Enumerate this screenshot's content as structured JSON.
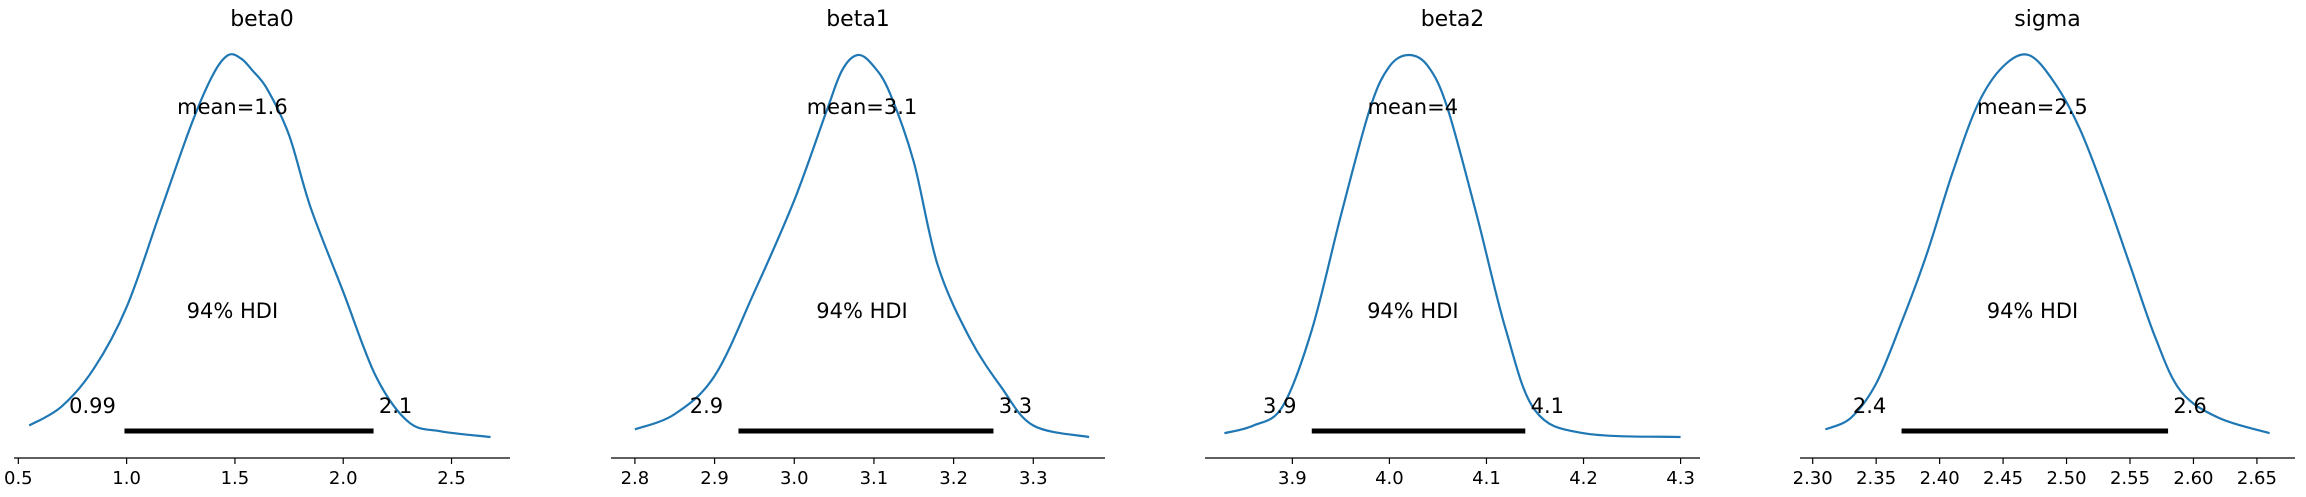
{
  "chart_data": [
    {
      "type": "line",
      "title": "beta0",
      "mean_label": "mean=1.6",
      "hdi_label": "94% HDI",
      "hdi_low_label": "0.99",
      "hdi_high_label": "2.1",
      "hdi": [
        0.99,
        2.14
      ],
      "xlim": [
        0.48,
        2.77
      ],
      "xticks": [
        "0.5",
        "1.0",
        "1.5",
        "2.0",
        "2.5"
      ],
      "x": [
        0.55,
        0.7,
        0.85,
        1.0,
        1.15,
        1.3,
        1.4,
        1.47,
        1.53,
        1.58,
        1.65,
        1.75,
        1.85,
        2.0,
        2.15,
        2.3,
        2.45,
        2.68
      ],
      "y": [
        0.03,
        0.08,
        0.18,
        0.34,
        0.58,
        0.82,
        0.95,
        1.0,
        0.99,
        0.96,
        0.91,
        0.79,
        0.6,
        0.38,
        0.16,
        0.04,
        0.015,
        0.0
      ]
    },
    {
      "type": "line",
      "title": "beta1",
      "mean_label": "mean=3.1",
      "hdi_label": "94% HDI",
      "hdi_low_label": "2.9",
      "hdi_high_label": "3.3",
      "hdi": [
        2.93,
        3.25
      ],
      "xlim": [
        2.77,
        3.39
      ],
      "xticks": [
        "2.8",
        "2.9",
        "3.0",
        "3.1",
        "3.2",
        "3.3"
      ],
      "x": [
        2.8,
        2.85,
        2.9,
        2.95,
        3.0,
        3.04,
        3.06,
        3.08,
        3.1,
        3.12,
        3.15,
        3.18,
        3.22,
        3.26,
        3.3,
        3.37
      ],
      "y": [
        0.02,
        0.06,
        0.16,
        0.38,
        0.62,
        0.85,
        0.96,
        1.0,
        0.97,
        0.9,
        0.72,
        0.45,
        0.26,
        0.13,
        0.03,
        0.0
      ]
    },
    {
      "type": "line",
      "title": "beta2",
      "mean_label": "mean=4",
      "hdi_label": "94% HDI",
      "hdi_low_label": "3.9",
      "hdi_high_label": "4.1",
      "hdi": [
        3.92,
        4.14
      ],
      "xlim": [
        3.81,
        4.32
      ],
      "xticks": [
        "3.9",
        "4.0",
        "4.1",
        "4.2",
        "4.3"
      ],
      "x": [
        3.83,
        3.86,
        3.89,
        3.92,
        3.95,
        3.98,
        4.0,
        4.02,
        4.04,
        4.06,
        4.09,
        4.12,
        4.15,
        4.2,
        4.3
      ],
      "y": [
        0.01,
        0.03,
        0.08,
        0.28,
        0.58,
        0.86,
        0.97,
        1.0,
        0.97,
        0.86,
        0.58,
        0.28,
        0.07,
        0.01,
        0.0
      ]
    },
    {
      "type": "line",
      "title": "sigma",
      "mean_label": "mean=2.5",
      "hdi_label": "94% HDI",
      "hdi_low_label": "2.4",
      "hdi_high_label": "2.6",
      "hdi": [
        2.37,
        2.58
      ],
      "xlim": [
        2.29,
        2.68
      ],
      "xticks": [
        "2.30",
        "2.35",
        "2.40",
        "2.45",
        "2.50",
        "2.55",
        "2.60",
        "2.65"
      ],
      "x": [
        2.31,
        2.33,
        2.35,
        2.37,
        2.39,
        2.41,
        2.43,
        2.45,
        2.47,
        2.49,
        2.51,
        2.53,
        2.55,
        2.57,
        2.59,
        2.62,
        2.66
      ],
      "y": [
        0.02,
        0.05,
        0.14,
        0.3,
        0.48,
        0.69,
        0.87,
        0.97,
        1.0,
        0.93,
        0.81,
        0.64,
        0.45,
        0.26,
        0.12,
        0.05,
        0.01
      ]
    }
  ],
  "colors": {
    "curve": "#1f77b4",
    "hdi": "#000000"
  }
}
